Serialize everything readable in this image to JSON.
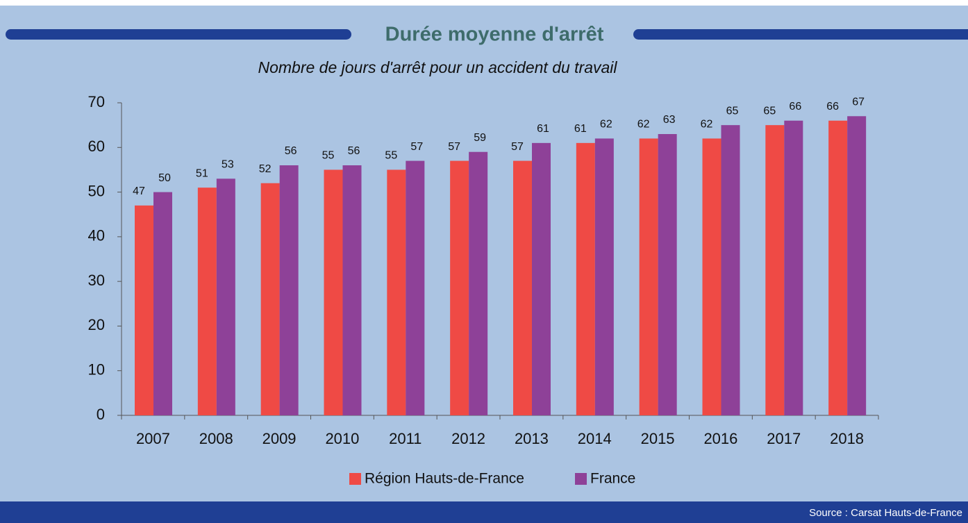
{
  "chart_data": {
    "type": "bar",
    "title": "Durée moyenne d'arrêt",
    "subtitle": "Nombre de jours d'arrêt pour un accident du travail",
    "source": "Source : Carsat Hauts-de-France",
    "categories": [
      "2007",
      "2008",
      "2009",
      "2010",
      "2011",
      "2012",
      "2013",
      "2014",
      "2015",
      "2016",
      "2017",
      "2018"
    ],
    "series": [
      {
        "name": "Région Hauts-de-France",
        "color": "#ef4a45",
        "values": [
          47,
          51,
          52,
          55,
          55,
          57,
          57,
          61,
          62,
          62,
          65,
          66
        ]
      },
      {
        "name": "France",
        "color": "#8e4198",
        "values": [
          50,
          53,
          56,
          56,
          57,
          59,
          61,
          62,
          63,
          65,
          66,
          67
        ]
      }
    ],
    "ylim": [
      0,
      70
    ],
    "yticks": [
      0,
      10,
      20,
      30,
      40,
      50,
      60,
      70
    ],
    "grid": false,
    "legend": "bottom"
  }
}
